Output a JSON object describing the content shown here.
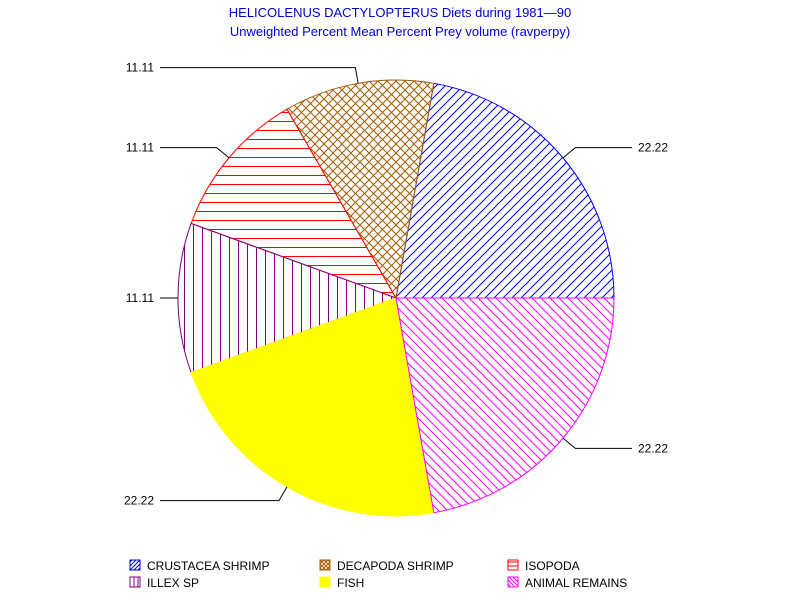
{
  "chart_data": {
    "type": "pie",
    "title": "HELICOLENUS DACTYLOPTERUS Diets during 1981—90",
    "subtitle": "Unweighted Percent Mean Percent Prey  volume (ravperpy)",
    "slices": [
      {
        "name": "CRUSTACEA SHRIMP",
        "value": 22.22,
        "label": "22.22",
        "color": "#0000ff",
        "pattern": "diag-up"
      },
      {
        "name": "DECAPODA SHRIMP",
        "value": 11.11,
        "label": "11.11",
        "color": "#a05a00",
        "pattern": "crosshatch"
      },
      {
        "name": "ISOPODA",
        "value": 11.11,
        "label": "11.11",
        "color": "#ff0000",
        "pattern": "horizontal"
      },
      {
        "name": "ILLEX SP",
        "value": 11.11,
        "label": "11.11",
        "color": "#800080",
        "pattern": "vertical"
      },
      {
        "name": "FISH",
        "value": 22.22,
        "label": "22.22",
        "color": "#ffff00",
        "pattern": "solid"
      },
      {
        "name": "ANIMAL REMAINS",
        "value": 22.22,
        "label": "22.22",
        "color": "#ff00ff",
        "pattern": "diag-down"
      }
    ],
    "legend_placement": "bottom"
  }
}
